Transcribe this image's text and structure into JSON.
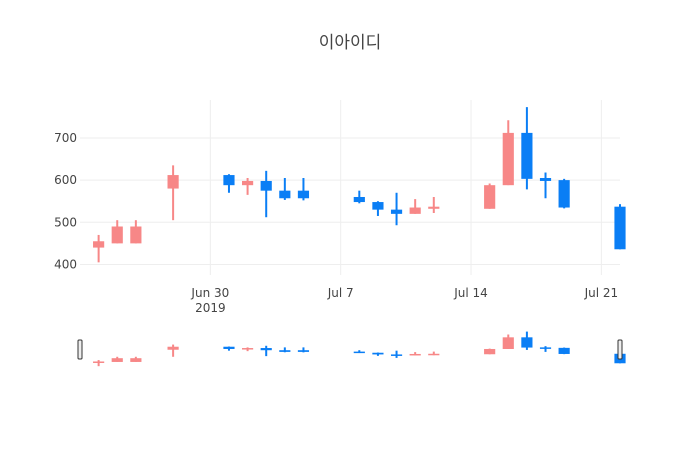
{
  "chart_data": {
    "type": "candlestick",
    "title": "이아이디",
    "xlabel": "",
    "ylabel": "",
    "ylim": [
      375,
      790
    ],
    "y_ticks": [
      400,
      500,
      600,
      700
    ],
    "x_ticks": [
      {
        "date": "2019-06-30",
        "label": "Jun 30",
        "sublabel": "2019"
      },
      {
        "date": "2019-07-07",
        "label": "Jul 7",
        "sublabel": ""
      },
      {
        "date": "2019-07-14",
        "label": "Jul 14",
        "sublabel": ""
      },
      {
        "date": "2019-07-21",
        "label": "Jul 21",
        "sublabel": ""
      }
    ],
    "x_range": [
      "2019-06-23",
      "2019-07-22"
    ],
    "grid": true,
    "legend": false,
    "rangeslider": true,
    "colors": {
      "increasing": "#f78787",
      "decreasing": "#0a7ef5",
      "grid": "#eeeeee",
      "text": "#444444"
    },
    "candles": [
      {
        "date": "2019-06-24",
        "open": 440,
        "high": 470,
        "low": 405,
        "close": 455
      },
      {
        "date": "2019-06-25",
        "open": 450,
        "high": 505,
        "low": 450,
        "close": 490
      },
      {
        "date": "2019-06-26",
        "open": 450,
        "high": 505,
        "low": 450,
        "close": 490
      },
      {
        "date": "2019-06-28",
        "open": 580,
        "high": 635,
        "low": 505,
        "close": 612
      },
      {
        "date": "2019-07-01",
        "open": 612,
        "high": 614,
        "low": 570,
        "close": 588
      },
      {
        "date": "2019-07-02",
        "open": 588,
        "high": 605,
        "low": 565,
        "close": 598
      },
      {
        "date": "2019-07-03",
        "open": 598,
        "high": 622,
        "low": 512,
        "close": 575
      },
      {
        "date": "2019-07-04",
        "open": 575,
        "high": 605,
        "low": 553,
        "close": 557
      },
      {
        "date": "2019-07-05",
        "open": 575,
        "high": 605,
        "low": 552,
        "close": 557
      },
      {
        "date": "2019-07-08",
        "open": 560,
        "high": 575,
        "low": 545,
        "close": 548
      },
      {
        "date": "2019-07-09",
        "open": 548,
        "high": 550,
        "low": 515,
        "close": 530
      },
      {
        "date": "2019-07-10",
        "open": 530,
        "high": 570,
        "low": 493,
        "close": 520
      },
      {
        "date": "2019-07-11",
        "open": 520,
        "high": 555,
        "low": 520,
        "close": 535
      },
      {
        "date": "2019-07-12",
        "open": 532,
        "high": 560,
        "low": 522,
        "close": 537
      },
      {
        "date": "2019-07-15",
        "open": 532,
        "high": 592,
        "low": 532,
        "close": 588
      },
      {
        "date": "2019-07-16",
        "open": 588,
        "high": 742,
        "low": 588,
        "close": 712
      },
      {
        "date": "2019-07-17",
        "open": 712,
        "high": 773,
        "low": 578,
        "close": 603
      },
      {
        "date": "2019-07-18",
        "open": 605,
        "high": 618,
        "low": 557,
        "close": 598
      },
      {
        "date": "2019-07-19",
        "open": 600,
        "high": 603,
        "low": 533,
        "close": 535
      },
      {
        "date": "2019-07-22",
        "open": 537,
        "high": 543,
        "low": 436,
        "close": 436
      }
    ]
  }
}
